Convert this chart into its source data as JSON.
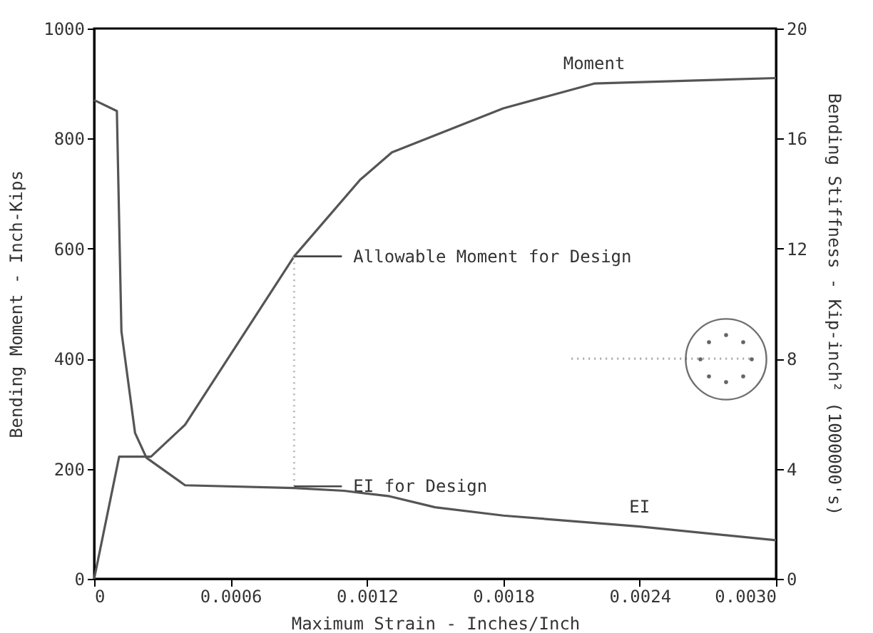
{
  "chart_data": {
    "type": "line",
    "xlabel": "Maximum Strain - Inches/Inch",
    "ylabel": "Bending Moment - Inch-Kips",
    "y2label": "Bending Stiffness - Kip-inch² (1000000's)",
    "xlim": [
      0,
      0.003
    ],
    "xticks": [
      0,
      0.0006,
      0.0012,
      0.0018,
      0.0024,
      {
        "value": 0.003,
        "label": "0.0030"
      }
    ],
    "ylim": [
      0,
      1000
    ],
    "yticks": [
      0,
      200,
      400,
      600,
      800,
      1000
    ],
    "y2lim": [
      0,
      20
    ],
    "y2ticks": [
      0,
      4,
      8,
      12,
      16,
      20
    ],
    "grid": false,
    "marker": "none",
    "line_style": "solid",
    "series": [
      {
        "name": "Moment",
        "color": "#555555",
        "axis": "y",
        "x": [
          0,
          0.00011,
          0.00025,
          0.0004,
          0.00088,
          0.00117,
          0.00131,
          0.0018,
          0.0022,
          0.003
        ],
        "values": [
          0,
          222,
          222,
          280,
          586,
          725,
          775,
          855,
          900,
          910
        ]
      },
      {
        "name": "EI",
        "color": "#555555",
        "axis": "y2",
        "x": [
          0,
          0.0001,
          0.00012,
          0.00018,
          0.00023,
          0.0004,
          0.00088,
          0.0011,
          0.0013,
          0.0015,
          0.0018,
          0.0024,
          0.003
        ],
        "values": [
          17.4,
          17.0,
          9.0,
          5.3,
          4.4,
          3.4,
          3.3,
          3.2,
          3.0,
          2.6,
          2.3,
          1.9,
          1.4
        ]
      },
      {
        "type": "line",
        "color": "#bbbbbb",
        "axis": "y",
        "line_style": "dotted",
        "x": [
          0.00088,
          0.00088
        ],
        "values": [
          168,
          586
        ]
      },
      {
        "type": "line",
        "color": "#aaaaaa",
        "axis": "y",
        "line_style": "dotted",
        "x": [
          0.0021,
          0.0029
        ],
        "values": [
          400,
          400
        ]
      }
    ],
    "annotations": [
      {
        "text": "Allowable Moment for Design",
        "x": 0.00088,
        "y": 586
      },
      {
        "text": "EI for Design",
        "x": 0.00088,
        "y": 168
      }
    ]
  }
}
